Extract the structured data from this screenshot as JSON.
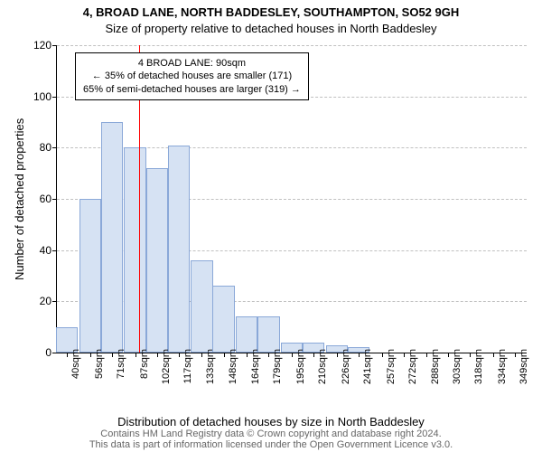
{
  "title_line1": "4, BROAD LANE, NORTH BADDESLEY, SOUTHAMPTON, SO52 9GH",
  "title_line2": "Size of property relative to detached houses in North Baddesley",
  "ylabel": "Number of detached properties",
  "xlabel": "Distribution of detached houses by size in North Baddesley",
  "credit_line1": "Contains HM Land Registry data © Crown copyright and database right 2024.",
  "credit_line2": "This data is part of information licensed under the Open Government Licence v3.0.",
  "title_fontsize": 13,
  "subtitle_fontsize": 13,
  "axis_label_fontsize": 13,
  "credit_fontsize": 11,
  "annot_fontsize": 11,
  "chart": {
    "type": "histogram",
    "background_color": "#ffffff",
    "grid_color": "#c0c0c0",
    "axis_color": "#000000",
    "bar_fill": "#d6e2f3",
    "bar_border": "#8aa8d8",
    "ref_line_color": "#ff0000",
    "ref_line_width": 1,
    "ylim": [
      0,
      120
    ],
    "ytick_step": 20,
    "yticks": [
      0,
      20,
      40,
      60,
      80,
      100,
      120
    ],
    "xlim": [
      33,
      357
    ],
    "x_tick_start": 40,
    "x_tick_step": 15.5,
    "x_tick_count": 21,
    "x_tick_suffix": "sqm",
    "bar_width_ratio": 0.98,
    "x_tick_values": [
      40,
      56,
      71,
      87,
      102,
      117,
      133,
      148,
      164,
      179,
      195,
      210,
      226,
      241,
      257,
      272,
      288,
      303,
      318,
      334,
      349
    ],
    "values": [
      10,
      60,
      90,
      80,
      72,
      81,
      36,
      26,
      14,
      14,
      4,
      4,
      3,
      2,
      0,
      0,
      0,
      0,
      0,
      0,
      0
    ],
    "reference_x": 90,
    "annotation": {
      "border_color": "#000000",
      "lines": [
        "4 BROAD LANE: 90sqm",
        "← 35% of detached houses are smaller (171)",
        "65% of semi-detached houses are larger (319) →"
      ]
    }
  }
}
